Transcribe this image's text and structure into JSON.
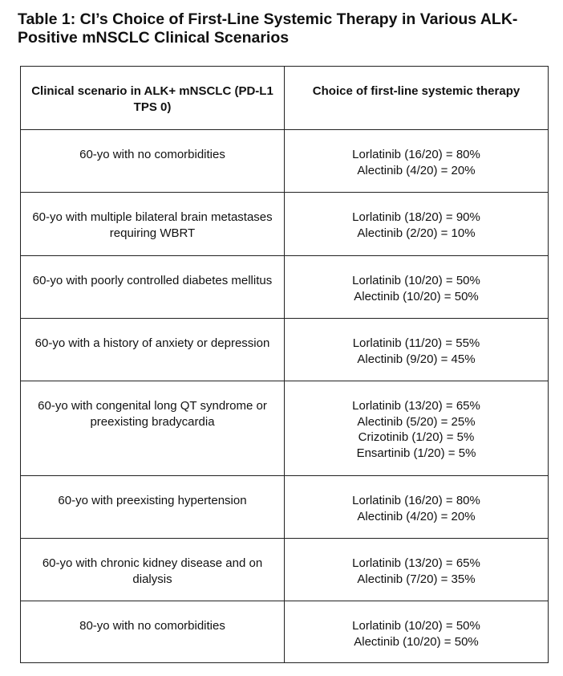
{
  "title": "Table 1: CI’s Choice of First-Line Systemic Therapy in Various ALK-Positive mNSCLC Clinical Scenarios",
  "table": {
    "header": [
      "Clinical scenario in ALK+ mNSCLC (PD-L1 TPS 0)",
      "Choice of first-line systemic therapy"
    ],
    "rows": [
      {
        "scenario": "60-yo with no comorbidities",
        "choices": [
          "Lorlatinib (16/20) = 80%",
          "Alectinib (4/20) = 20%"
        ]
      },
      {
        "scenario": "60-yo with multiple bilateral brain metastases requiring WBRT",
        "choices": [
          "Lorlatinib (18/20) = 90%",
          "Alectinib (2/20) = 10%"
        ]
      },
      {
        "scenario": "60-yo with poorly controlled diabetes mellitus",
        "choices": [
          "Lorlatinib (10/20) = 50%",
          "Alectinib (10/20) = 50%"
        ]
      },
      {
        "scenario": "60-yo with a history of anxiety or depression",
        "choices": [
          "Lorlatinib (11/20) = 55%",
          "Alectinib (9/20) = 45%"
        ]
      },
      {
        "scenario": "60-yo with congenital long QT syndrome or preexisting bradycardia",
        "choices": [
          "Lorlatinib (13/20) = 65%",
          "Alectinib (5/20) = 25%",
          "Crizotinib (1/20) = 5%",
          "Ensartinib (1/20) = 5%"
        ]
      },
      {
        "scenario": "60-yo with preexisting hypertension",
        "choices": [
          "Lorlatinib (16/20) = 80%",
          "Alectinib (4/20) = 20%"
        ]
      },
      {
        "scenario": "60-yo with chronic kidney disease and on dialysis",
        "choices": [
          "Lorlatinib (13/20) = 65%",
          "Alectinib (7/20) = 35%"
        ]
      },
      {
        "scenario": "80-yo with no comorbidities",
        "choices": [
          "Lorlatinib (10/20) = 50%",
          "Alectinib (10/20) = 50%"
        ]
      }
    ]
  }
}
